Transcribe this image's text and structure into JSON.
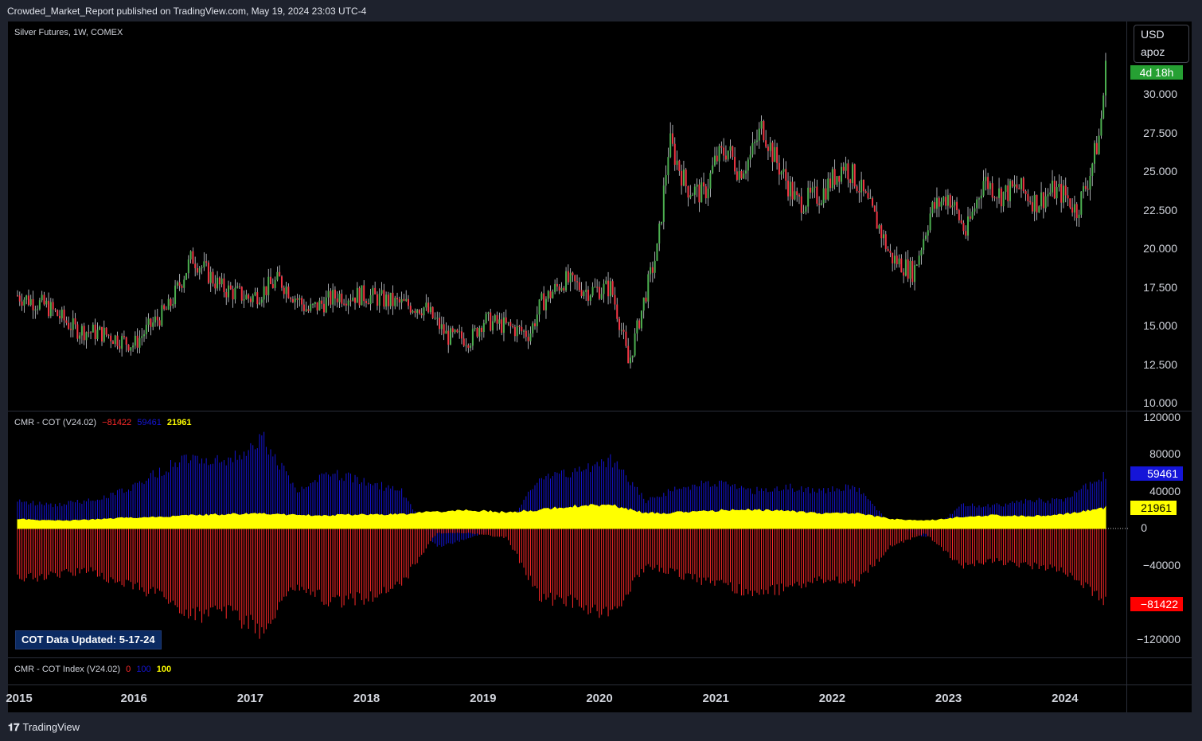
{
  "header": {
    "published": "Crowded_Market_Report published on TradingView.com, May 19, 2024 23:03 UTC-4"
  },
  "main_pane": {
    "title": "Silver Futures, 1W, COMEX",
    "currency": "USD",
    "unit": "apoz",
    "timer": "4d 18h"
  },
  "cot_pane": {
    "title": "CMR - COT (V24.02)",
    "val_red": "−81422",
    "val_blue": "59461",
    "val_yellow": "21961",
    "tag_blue": "59461",
    "tag_yellow": "21961",
    "tag_red": "−81422",
    "updated": "COT Data Updated:  5-17-24",
    "colors": {
      "red": "#ff2a2a",
      "blue": "#1515d8",
      "yellow": "#ffff00"
    }
  },
  "index_pane": {
    "title": "CMR - COT Index (V24.02)",
    "val_red": "0",
    "val_blue": "100",
    "val_yellow": "100"
  },
  "footer": {
    "brand": "TradingView"
  },
  "chart_data": [
    {
      "type": "candlestick",
      "title": "Silver Futures, 1W, COMEX",
      "ylabel": "USD apoz",
      "ylim": [
        10.0,
        31.0
      ],
      "y_ticks": [
        "30.000",
        "27.500",
        "25.000",
        "22.500",
        "20.000",
        "17.500",
        "15.000",
        "12.500",
        "10.000"
      ],
      "x_ticks": [
        "2015",
        "2016",
        "2017",
        "2018",
        "2019",
        "2020",
        "2021",
        "2022",
        "2023",
        "2024"
      ],
      "x": [
        2015.0,
        2015.25,
        2015.5,
        2015.75,
        2016.0,
        2016.1,
        2016.3,
        2016.5,
        2016.75,
        2017.0,
        2017.25,
        2017.5,
        2017.75,
        2018.0,
        2018.25,
        2018.5,
        2018.7,
        2018.9,
        2019.0,
        2019.2,
        2019.4,
        2019.5,
        2019.7,
        2019.9,
        2020.1,
        2020.2,
        2020.25,
        2020.4,
        2020.5,
        2020.6,
        2020.75,
        2020.9,
        2021.0,
        2021.1,
        2021.2,
        2021.3,
        2021.4,
        2021.5,
        2021.7,
        2021.9,
        2022.1,
        2022.2,
        2022.4,
        2022.5,
        2022.7,
        2022.85,
        2023.0,
        2023.15,
        2023.3,
        2023.45,
        2023.6,
        2023.75,
        2023.9,
        2024.0,
        2024.1,
        2024.2,
        2024.3,
        2024.35
      ],
      "close": [
        17.0,
        16.3,
        14.8,
        14.5,
        13.8,
        14.7,
        16.2,
        19.5,
        17.5,
        16.8,
        18.0,
        16.0,
        17.0,
        17.0,
        16.5,
        16.2,
        14.3,
        14.2,
        15.4,
        15.0,
        14.5,
        16.5,
        18.0,
        17.3,
        17.5,
        14.5,
        12.5,
        17.2,
        20.0,
        27.0,
        24.0,
        23.5,
        25.8,
        26.5,
        25.0,
        26.0,
        28.0,
        26.0,
        23.0,
        23.5,
        25.5,
        24.5,
        21.5,
        19.5,
        18.5,
        22.5,
        23.5,
        21.0,
        24.5,
        23.5,
        24.0,
        23.0,
        23.8,
        23.5,
        22.5,
        24.5,
        27.5,
        31.6
      ],
      "notes": "values estimated from candlestick trend"
    },
    {
      "type": "bar",
      "title": "CMR - COT (V24.02)",
      "ylim": [
        -120000,
        120000
      ],
      "y_ticks": [
        "120000",
        "80000",
        "40000",
        "0",
        "−40000",
        "−120000"
      ],
      "series": [
        {
          "name": "−81422",
          "color": "#ff2a2a",
          "last": -81422
        },
        {
          "name": "59461",
          "color": "#1515d8",
          "last": 59461
        },
        {
          "name": "21961",
          "color": "#ffff00",
          "last": 21961
        }
      ],
      "x": [
        2015.0,
        2015.3,
        2015.6,
        2015.9,
        2016.2,
        2016.5,
        2016.8,
        2017.1,
        2017.4,
        2017.7,
        2018.0,
        2018.3,
        2018.6,
        2018.9,
        2019.2,
        2019.5,
        2019.8,
        2020.1,
        2020.4,
        2020.7,
        2021.0,
        2021.3,
        2021.6,
        2021.9,
        2022.2,
        2022.5,
        2022.8,
        2023.1,
        2023.4,
        2023.7,
        2024.0,
        2024.35
      ],
      "red": [
        -55000,
        -50000,
        -45000,
        -60000,
        -70000,
        -95000,
        -90000,
        -110000,
        -60000,
        -80000,
        -75000,
        -60000,
        -5000,
        -5000,
        -10000,
        -75000,
        -80000,
        -95000,
        -40000,
        -50000,
        -60000,
        -70000,
        -65000,
        -55000,
        -60000,
        -20000,
        -5000,
        -40000,
        -35000,
        -40000,
        -45000,
        -81422
      ],
      "blue": [
        30000,
        25000,
        30000,
        40000,
        60000,
        80000,
        70000,
        100000,
        40000,
        60000,
        50000,
        40000,
        -20000,
        -10000,
        5000,
        55000,
        60000,
        75000,
        30000,
        45000,
        50000,
        40000,
        45000,
        40000,
        45000,
        5000,
        -10000,
        25000,
        25000,
        30000,
        30000,
        59461
      ],
      "yellow": [
        10000,
        8000,
        9000,
        11000,
        12000,
        14000,
        15000,
        16000,
        14000,
        14000,
        15000,
        15000,
        18000,
        19000,
        17000,
        20000,
        24000,
        25000,
        16000,
        17000,
        19000,
        20000,
        19000,
        16000,
        16000,
        10000,
        8000,
        12000,
        14000,
        13000,
        15000,
        21961
      ]
    }
  ]
}
